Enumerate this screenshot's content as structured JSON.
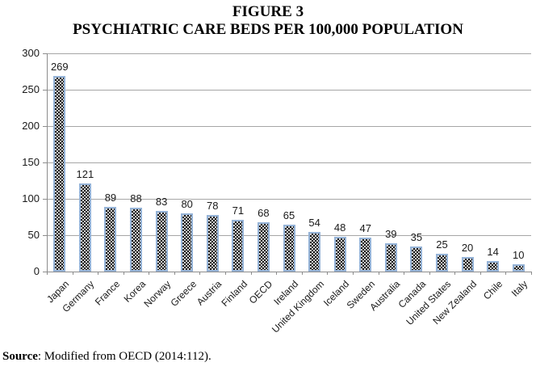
{
  "figure": {
    "title_line1": "FIGURE 3",
    "title_line2": "PSYCHIATRIC CARE BEDS PER 100,000 POPULATION",
    "source_label": "Source",
    "source_rest": ": Modified from OECD (2014:112)."
  },
  "chart_data": {
    "type": "bar",
    "title": "PSYCHIATRIC CARE BEDS PER 100,000 POPULATION",
    "categories": [
      "Japan",
      "Germany",
      "France",
      "Korea",
      "Norway",
      "Greece",
      "Austria",
      "Finland",
      "OECD",
      "Ireland",
      "United Kingdom",
      "Iceland",
      "Sweden",
      "Australia",
      "Canada",
      "United States",
      "New Zealand",
      "Chile",
      "Italy"
    ],
    "values": [
      269,
      121,
      89,
      88,
      83,
      80,
      78,
      71,
      68,
      65,
      54,
      48,
      47,
      39,
      35,
      25,
      20,
      14,
      10
    ],
    "xlabel": "",
    "ylabel": "",
    "ylim": [
      0,
      300
    ],
    "yticks": [
      0,
      50,
      100,
      150,
      200,
      250,
      300
    ],
    "grid": true,
    "legend": "none",
    "data_labels": true,
    "colors": {
      "bar_border": "#95b3d7",
      "bar_fill_base": "#101010",
      "bar_fill_dot": "#e0e0e0",
      "gridline": "#a6a6a6",
      "axis": "#8c8c8c",
      "text": "#1a1a1a"
    }
  }
}
